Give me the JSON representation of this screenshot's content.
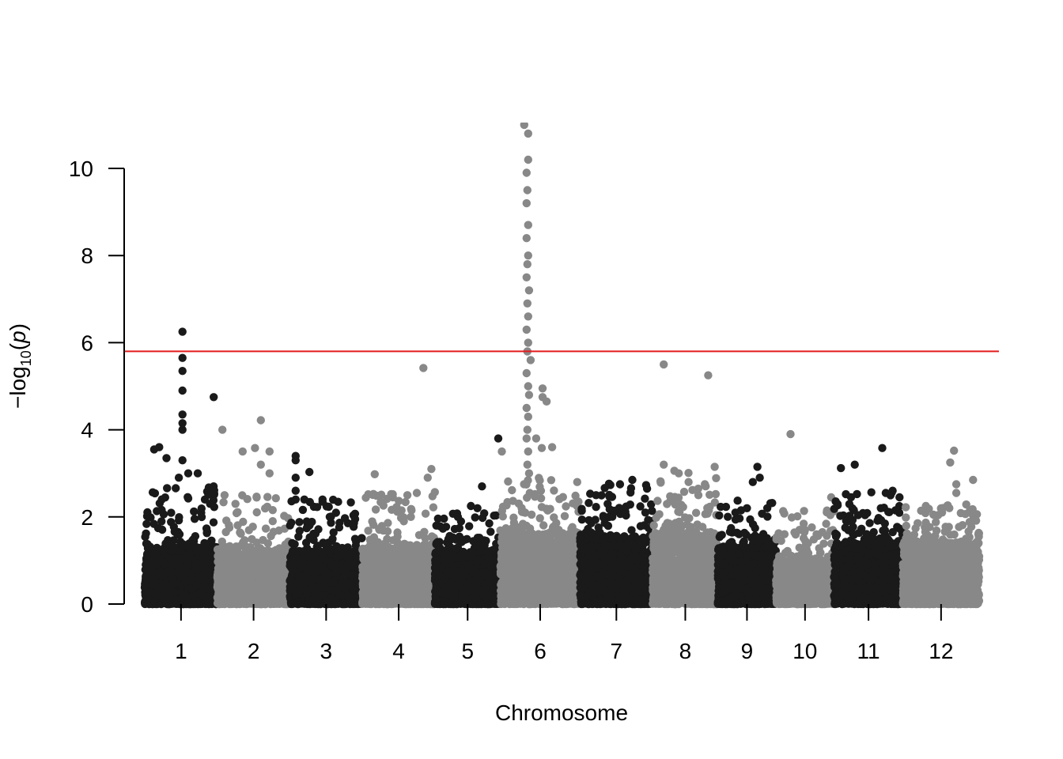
{
  "chart_data": {
    "type": "scatter",
    "subtype": "manhattan",
    "title": "",
    "xlabel": "Chromosome",
    "ylabel": {
      "prefix": "−log",
      "subscript": "10",
      "open": "(",
      "italic": "p",
      "close": ")"
    },
    "ylim": [
      0,
      11
    ],
    "yticks": [
      0,
      2,
      4,
      6,
      8,
      10
    ],
    "threshold": {
      "value": 5.8,
      "color": "#e31a1c"
    },
    "colors": {
      "odd": "#1a1a1a",
      "even": "#888888",
      "axis": "#000000"
    },
    "grid": false,
    "legend": "none",
    "chromosomes": [
      {
        "label": "1",
        "length": 100,
        "baseline_max": 1.3,
        "noise_max": 2.8,
        "highlights": [
          [
            0.52,
            6.25
          ],
          [
            0.52,
            5.65
          ],
          [
            0.52,
            5.35
          ],
          [
            0.52,
            4.9
          ],
          [
            0.52,
            4.35
          ],
          [
            0.52,
            4.15
          ],
          [
            0.52,
            4.0
          ],
          [
            0.52,
            3.3
          ],
          [
            0.95,
            4.75
          ],
          [
            0.6,
            3.0
          ],
          [
            0.73,
            3.0
          ],
          [
            0.13,
            3.55
          ],
          [
            0.2,
            3.6
          ],
          [
            0.3,
            3.35
          ],
          [
            0.47,
            2.9
          ],
          [
            0.83,
            2.4
          ],
          [
            0.9,
            2.3
          ]
        ]
      },
      {
        "label": "2",
        "length": 100,
        "baseline_max": 1.2,
        "noise_max": 2.5,
        "highlights": [
          [
            0.07,
            4.0
          ],
          [
            0.6,
            4.22
          ],
          [
            0.52,
            3.58
          ],
          [
            0.35,
            3.5
          ],
          [
            0.72,
            3.5
          ],
          [
            0.6,
            3.2
          ],
          [
            0.72,
            3.0
          ],
          [
            0.1,
            2.5
          ],
          [
            0.25,
            2.3
          ]
        ]
      },
      {
        "label": "3",
        "length": 100,
        "baseline_max": 1.2,
        "noise_max": 2.4,
        "highlights": [
          [
            0.08,
            3.4
          ],
          [
            0.08,
            3.3
          ],
          [
            0.08,
            2.9
          ],
          [
            0.08,
            2.6
          ],
          [
            0.08,
            2.4
          ],
          [
            0.27,
            3.03
          ],
          [
            0.2,
            2.4
          ],
          [
            0.45,
            2.4
          ],
          [
            0.55,
            2.0
          ],
          [
            0.9,
            1.95
          ]
        ]
      },
      {
        "label": "4",
        "length": 100,
        "baseline_max": 1.3,
        "noise_max": 2.6,
        "highlights": [
          [
            0.84,
            5.42
          ],
          [
            0.17,
            2.98
          ],
          [
            0.9,
            2.9
          ],
          [
            0.95,
            3.1
          ],
          [
            0.62,
            2.5
          ],
          [
            0.75,
            2.55
          ]
        ]
      },
      {
        "label": "5",
        "length": 90,
        "baseline_max": 1.2,
        "noise_max": 2.1,
        "highlights": [
          [
            0.97,
            3.8
          ],
          [
            0.72,
            2.7
          ],
          [
            0.65,
            2.2
          ],
          [
            0.35,
            2.0
          ],
          [
            0.55,
            2.25
          ]
        ]
      },
      {
        "label": "6",
        "length": 110,
        "baseline_max": 1.6,
        "noise_max": 3.0,
        "highlights": [
          [
            0.3,
            11.0
          ],
          [
            0.35,
            10.8
          ],
          [
            0.35,
            10.2
          ],
          [
            0.33,
            9.9
          ],
          [
            0.34,
            9.5
          ],
          [
            0.33,
            9.2
          ],
          [
            0.35,
            8.7
          ],
          [
            0.33,
            8.4
          ],
          [
            0.35,
            8.0
          ],
          [
            0.34,
            7.8
          ],
          [
            0.33,
            7.5
          ],
          [
            0.36,
            7.2
          ],
          [
            0.34,
            6.9
          ],
          [
            0.35,
            6.6
          ],
          [
            0.33,
            6.3
          ],
          [
            0.35,
            6.0
          ],
          [
            0.34,
            5.8
          ],
          [
            0.38,
            5.6
          ],
          [
            0.33,
            5.3
          ],
          [
            0.35,
            5.0
          ],
          [
            0.36,
            4.8
          ],
          [
            0.33,
            4.5
          ],
          [
            0.35,
            4.3
          ],
          [
            0.34,
            4.0
          ],
          [
            0.33,
            3.8
          ],
          [
            0.35,
            3.5
          ],
          [
            0.34,
            3.2
          ],
          [
            0.36,
            3.0
          ],
          [
            0.53,
            4.95
          ],
          [
            0.53,
            4.75
          ],
          [
            0.58,
            4.65
          ],
          [
            0.52,
            3.58
          ],
          [
            0.65,
            3.6
          ],
          [
            0.45,
            3.8
          ],
          [
            0.02,
            3.5
          ]
        ]
      },
      {
        "label": "7",
        "length": 100,
        "baseline_max": 1.5,
        "noise_max": 2.8,
        "highlights": [
          [
            0.22,
            2.5
          ],
          [
            0.38,
            2.3
          ],
          [
            0.55,
            2.75
          ],
          [
            0.72,
            2.85
          ],
          [
            0.9,
            2.1
          ]
        ]
      },
      {
        "label": "8",
        "length": 90,
        "baseline_max": 1.6,
        "noise_max": 3.1,
        "highlights": [
          [
            0.17,
            5.5
          ],
          [
            0.85,
            5.25
          ],
          [
            0.17,
            3.2
          ],
          [
            0.4,
            3.0
          ],
          [
            0.55,
            2.8
          ],
          [
            0.95,
            3.15
          ],
          [
            0.8,
            2.75
          ],
          [
            0.7,
            2.5
          ]
        ]
      },
      {
        "label": "9",
        "length": 80,
        "baseline_max": 1.3,
        "noise_max": 2.4,
        "highlights": [
          [
            0.68,
            3.15
          ],
          [
            0.72,
            2.9
          ],
          [
            0.6,
            2.8
          ],
          [
            0.5,
            2.2
          ],
          [
            0.85,
            2.2
          ],
          [
            0.3,
            2.1
          ]
        ]
      },
      {
        "label": "10",
        "length": 80,
        "baseline_max": 1.0,
        "noise_max": 2.2,
        "highlights": [
          [
            0.25,
            3.9
          ],
          [
            0.95,
            2.45
          ],
          [
            0.5,
            1.7
          ],
          [
            0.7,
            1.6
          ],
          [
            0.8,
            1.65
          ]
        ]
      },
      {
        "label": "11",
        "length": 95,
        "baseline_max": 1.4,
        "noise_max": 2.6,
        "highlights": [
          [
            0.1,
            3.12
          ],
          [
            0.3,
            3.2
          ],
          [
            0.7,
            3.58
          ],
          [
            0.75,
            2.55
          ],
          [
            0.85,
            2.6
          ],
          [
            0.95,
            2.45
          ],
          [
            0.2,
            1.9
          ]
        ]
      },
      {
        "label": "12",
        "length": 105,
        "baseline_max": 1.4,
        "noise_max": 2.3,
        "highlights": [
          [
            0.67,
            3.52
          ],
          [
            0.62,
            3.25
          ],
          [
            0.92,
            2.85
          ],
          [
            0.7,
            2.75
          ],
          [
            0.7,
            2.55
          ],
          [
            0.4,
            2.05
          ],
          [
            0.3,
            2.25
          ],
          [
            0.88,
            2.15
          ]
        ]
      }
    ]
  }
}
